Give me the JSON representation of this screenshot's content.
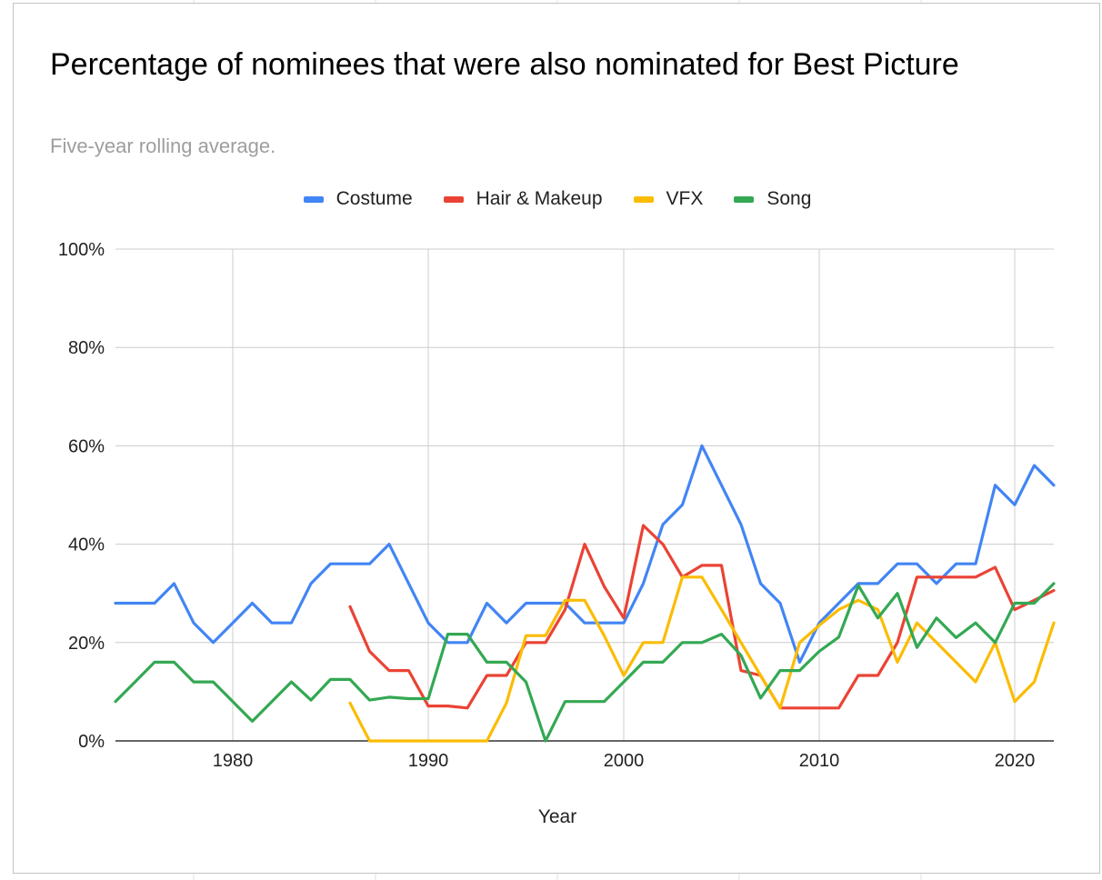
{
  "chart_data": {
    "type": "line",
    "title": "Percentage of nominees that were also nominated for Best Picture",
    "subtitle": "Five-year rolling average.",
    "xlabel": "Year",
    "ylabel": "",
    "xlim": [
      1974,
      2022
    ],
    "ylim": [
      0,
      100
    ],
    "x_ticks": [
      "1980",
      "1990",
      "2000",
      "2010",
      "2020"
    ],
    "x_tick_values": [
      1980,
      1990,
      2000,
      2010,
      2020
    ],
    "y_ticks": [
      "0%",
      "20%",
      "40%",
      "60%",
      "80%",
      "100%"
    ],
    "y_tick_values": [
      0,
      20,
      40,
      60,
      80,
      100
    ],
    "grid": true,
    "legend_position": "top",
    "series": [
      {
        "name": "Costume",
        "color": "#4285f4",
        "x": [
          1974,
          1975,
          1976,
          1977,
          1978,
          1979,
          1980,
          1981,
          1982,
          1983,
          1984,
          1985,
          1986,
          1987,
          1988,
          1989,
          1990,
          1991,
          1992,
          1993,
          1994,
          1995,
          1996,
          1997,
          1998,
          1999,
          2000,
          2001,
          2002,
          2003,
          2004,
          2005,
          2006,
          2007,
          2008,
          2009,
          2010,
          2011,
          2012,
          2013,
          2014,
          2015,
          2016,
          2017,
          2018,
          2019,
          2020,
          2021,
          2022
        ],
        "values": [
          28,
          28,
          28,
          32,
          24,
          20,
          24,
          28,
          24,
          24,
          32,
          36,
          36,
          36,
          40,
          32,
          24,
          20,
          20,
          28,
          24,
          28,
          28,
          28,
          24,
          24,
          24,
          32,
          44,
          48,
          60,
          52,
          44,
          32,
          28,
          16,
          24,
          28,
          32,
          32,
          36,
          36,
          32,
          36,
          36,
          52,
          48,
          56,
          52
        ]
      },
      {
        "name": "Hair & Makeup",
        "color": "#ea4335",
        "x": [
          1986,
          1987,
          1988,
          1989,
          1990,
          1991,
          1992,
          1993,
          1994,
          1995,
          1996,
          1997,
          1998,
          1999,
          2000,
          2001,
          2002,
          2003,
          2004,
          2005,
          2006,
          2007,
          2008,
          2009,
          2010,
          2011,
          2012,
          2013,
          2014,
          2015,
          2016,
          2017,
          2018,
          2019,
          2020,
          2021,
          2022
        ],
        "values": [
          27.3,
          18.2,
          14.3,
          14.3,
          7.1,
          7.1,
          6.7,
          13.3,
          13.3,
          20,
          20,
          26.7,
          40,
          31.4,
          25,
          43.8,
          40,
          33.3,
          35.7,
          35.7,
          14.3,
          13.3,
          6.7,
          6.7,
          6.7,
          6.7,
          13.3,
          13.3,
          20,
          33.3,
          33.3,
          33.3,
          33.3,
          35.3,
          26.7,
          28.6,
          30.6
        ]
      },
      {
        "name": "VFX",
        "color": "#fbbc04",
        "x": [
          1986,
          1987,
          1988,
          1989,
          1990,
          1991,
          1992,
          1993,
          1994,
          1995,
          1996,
          1997,
          1998,
          1999,
          2000,
          2001,
          2002,
          2003,
          2004,
          2005,
          2006,
          2007,
          2008,
          2009,
          2010,
          2011,
          2012,
          2013,
          2014,
          2015,
          2016,
          2017,
          2018,
          2019,
          2020,
          2021,
          2022
        ],
        "values": [
          7.7,
          0,
          0,
          0,
          0,
          0,
          0,
          0,
          7.7,
          21.4,
          21.4,
          28.6,
          28.6,
          21.4,
          13.3,
          20,
          20,
          33.3,
          33.3,
          26.7,
          20,
          13.3,
          6.7,
          20,
          23.5,
          26.7,
          28.6,
          26.7,
          16,
          24,
          20,
          16,
          12,
          20,
          8,
          12,
          24
        ]
      },
      {
        "name": "Song",
        "color": "#34a853",
        "x": [
          1974,
          1975,
          1976,
          1977,
          1978,
          1979,
          1980,
          1981,
          1982,
          1983,
          1984,
          1985,
          1986,
          1987,
          1988,
          1989,
          1990,
          1991,
          1992,
          1993,
          1994,
          1995,
          1996,
          1997,
          1998,
          1999,
          2000,
          2001,
          2002,
          2003,
          2004,
          2005,
          2006,
          2007,
          2008,
          2009,
          2010,
          2011,
          2012,
          2013,
          2014,
          2015,
          2016,
          2017,
          2018,
          2019,
          2020,
          2021,
          2022
        ],
        "values": [
          8,
          12,
          16,
          16,
          12,
          12,
          8,
          4,
          8,
          12,
          8.3,
          12.5,
          12.5,
          8.3,
          8.9,
          8.6,
          8.6,
          21.7,
          21.7,
          16,
          16,
          12,
          0,
          8,
          8,
          8,
          12,
          16,
          16,
          20,
          20,
          21.7,
          17.4,
          8.7,
          14.3,
          14.3,
          18.2,
          21.1,
          31.6,
          25,
          30,
          19,
          25,
          21,
          24,
          20,
          28,
          28,
          32
        ]
      }
    ]
  }
}
